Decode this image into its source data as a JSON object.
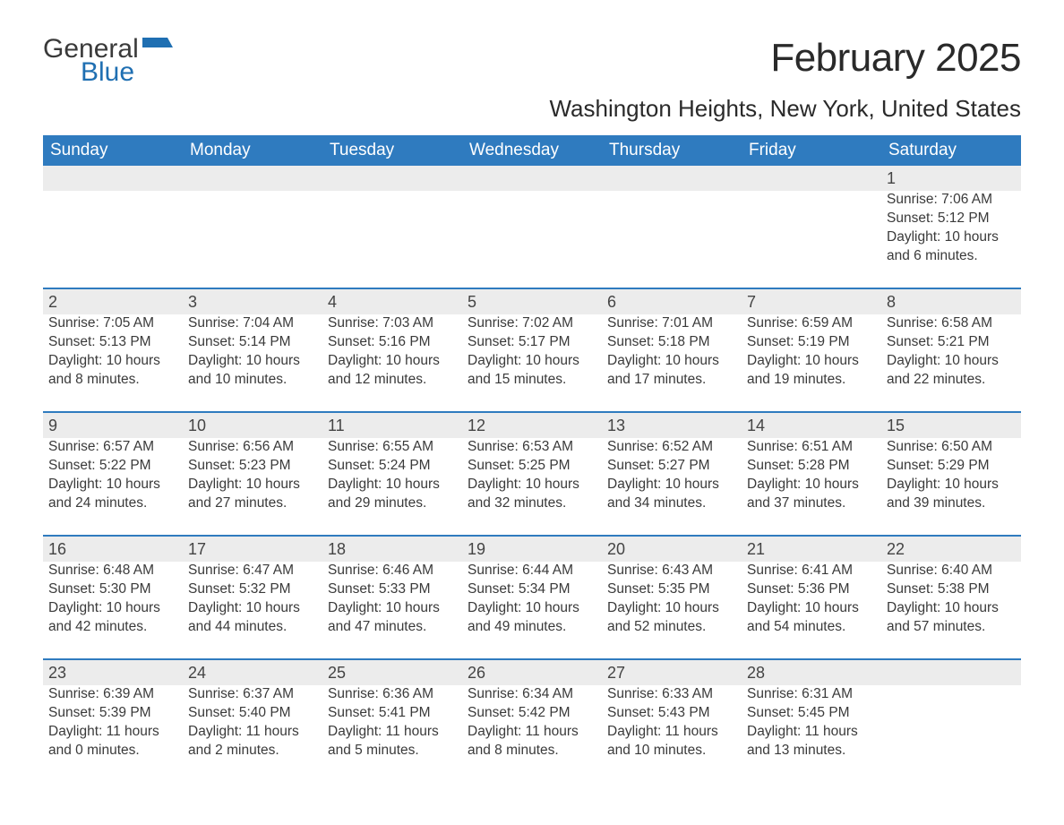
{
  "brand": {
    "general": "General",
    "blue": "Blue"
  },
  "title": "February 2025",
  "subtitle": "Washington Heights, New York, United States",
  "colors": {
    "header_bg": "#2f7bbf",
    "header_text": "#ffffff",
    "daynum_bg": "#ececec",
    "text": "#3a3a3a",
    "logo_blue": "#1f6fb2",
    "page_bg": "#ffffff"
  },
  "day_headers": [
    "Sunday",
    "Monday",
    "Tuesday",
    "Wednesday",
    "Thursday",
    "Friday",
    "Saturday"
  ],
  "weeks": [
    {
      "nums": [
        "",
        "",
        "",
        "",
        "",
        "",
        "1"
      ],
      "cells": [
        [],
        [],
        [],
        [],
        [],
        [],
        [
          "Sunrise: 7:06 AM",
          "Sunset: 5:12 PM",
          "Daylight: 10 hours",
          "and 6 minutes."
        ]
      ]
    },
    {
      "nums": [
        "2",
        "3",
        "4",
        "5",
        "6",
        "7",
        "8"
      ],
      "cells": [
        [
          "Sunrise: 7:05 AM",
          "Sunset: 5:13 PM",
          "Daylight: 10 hours",
          "and 8 minutes."
        ],
        [
          "Sunrise: 7:04 AM",
          "Sunset: 5:14 PM",
          "Daylight: 10 hours",
          "and 10 minutes."
        ],
        [
          "Sunrise: 7:03 AM",
          "Sunset: 5:16 PM",
          "Daylight: 10 hours",
          "and 12 minutes."
        ],
        [
          "Sunrise: 7:02 AM",
          "Sunset: 5:17 PM",
          "Daylight: 10 hours",
          "and 15 minutes."
        ],
        [
          "Sunrise: 7:01 AM",
          "Sunset: 5:18 PM",
          "Daylight: 10 hours",
          "and 17 minutes."
        ],
        [
          "Sunrise: 6:59 AM",
          "Sunset: 5:19 PM",
          "Daylight: 10 hours",
          "and 19 minutes."
        ],
        [
          "Sunrise: 6:58 AM",
          "Sunset: 5:21 PM",
          "Daylight: 10 hours",
          "and 22 minutes."
        ]
      ]
    },
    {
      "nums": [
        "9",
        "10",
        "11",
        "12",
        "13",
        "14",
        "15"
      ],
      "cells": [
        [
          "Sunrise: 6:57 AM",
          "Sunset: 5:22 PM",
          "Daylight: 10 hours",
          "and 24 minutes."
        ],
        [
          "Sunrise: 6:56 AM",
          "Sunset: 5:23 PM",
          "Daylight: 10 hours",
          "and 27 minutes."
        ],
        [
          "Sunrise: 6:55 AM",
          "Sunset: 5:24 PM",
          "Daylight: 10 hours",
          "and 29 minutes."
        ],
        [
          "Sunrise: 6:53 AM",
          "Sunset: 5:25 PM",
          "Daylight: 10 hours",
          "and 32 minutes."
        ],
        [
          "Sunrise: 6:52 AM",
          "Sunset: 5:27 PM",
          "Daylight: 10 hours",
          "and 34 minutes."
        ],
        [
          "Sunrise: 6:51 AM",
          "Sunset: 5:28 PM",
          "Daylight: 10 hours",
          "and 37 minutes."
        ],
        [
          "Sunrise: 6:50 AM",
          "Sunset: 5:29 PM",
          "Daylight: 10 hours",
          "and 39 minutes."
        ]
      ]
    },
    {
      "nums": [
        "16",
        "17",
        "18",
        "19",
        "20",
        "21",
        "22"
      ],
      "cells": [
        [
          "Sunrise: 6:48 AM",
          "Sunset: 5:30 PM",
          "Daylight: 10 hours",
          "and 42 minutes."
        ],
        [
          "Sunrise: 6:47 AM",
          "Sunset: 5:32 PM",
          "Daylight: 10 hours",
          "and 44 minutes."
        ],
        [
          "Sunrise: 6:46 AM",
          "Sunset: 5:33 PM",
          "Daylight: 10 hours",
          "and 47 minutes."
        ],
        [
          "Sunrise: 6:44 AM",
          "Sunset: 5:34 PM",
          "Daylight: 10 hours",
          "and 49 minutes."
        ],
        [
          "Sunrise: 6:43 AM",
          "Sunset: 5:35 PM",
          "Daylight: 10 hours",
          "and 52 minutes."
        ],
        [
          "Sunrise: 6:41 AM",
          "Sunset: 5:36 PM",
          "Daylight: 10 hours",
          "and 54 minutes."
        ],
        [
          "Sunrise: 6:40 AM",
          "Sunset: 5:38 PM",
          "Daylight: 10 hours",
          "and 57 minutes."
        ]
      ]
    },
    {
      "nums": [
        "23",
        "24",
        "25",
        "26",
        "27",
        "28",
        ""
      ],
      "cells": [
        [
          "Sunrise: 6:39 AM",
          "Sunset: 5:39 PM",
          "Daylight: 11 hours",
          "and 0 minutes."
        ],
        [
          "Sunrise: 6:37 AM",
          "Sunset: 5:40 PM",
          "Daylight: 11 hours",
          "and 2 minutes."
        ],
        [
          "Sunrise: 6:36 AM",
          "Sunset: 5:41 PM",
          "Daylight: 11 hours",
          "and 5 minutes."
        ],
        [
          "Sunrise: 6:34 AM",
          "Sunset: 5:42 PM",
          "Daylight: 11 hours",
          "and 8 minutes."
        ],
        [
          "Sunrise: 6:33 AM",
          "Sunset: 5:43 PM",
          "Daylight: 11 hours",
          "and 10 minutes."
        ],
        [
          "Sunrise: 6:31 AM",
          "Sunset: 5:45 PM",
          "Daylight: 11 hours",
          "and 13 minutes."
        ],
        []
      ]
    }
  ]
}
